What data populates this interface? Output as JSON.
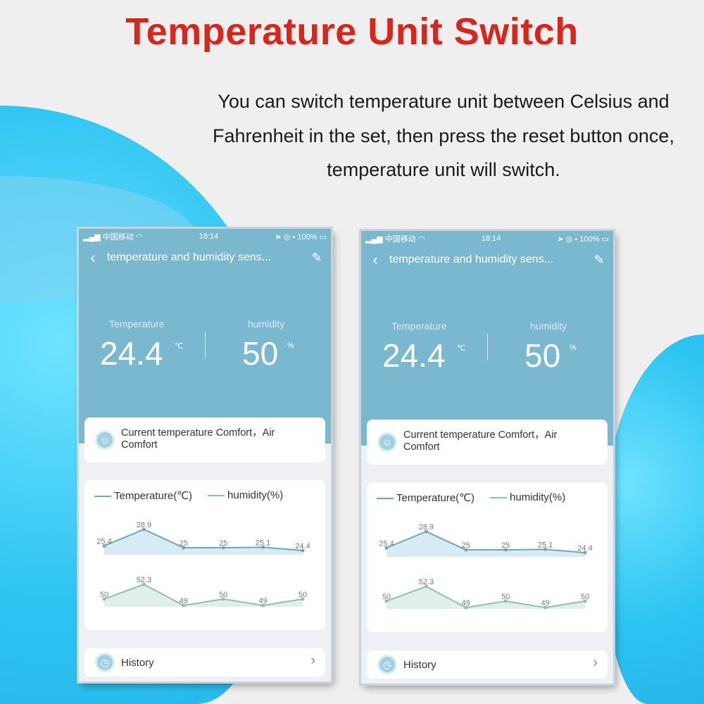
{
  "title": "Temperature Unit Switch",
  "subtitle": [
    "You can switch temperature unit between Celsius and",
    "Fahrenheit in the set, then press the reset button once,",
    "temperature unit will switch."
  ],
  "colors": {
    "title": "#d7261c",
    "header": "#7ab8d0",
    "accent_blob": "#2ec4f2"
  },
  "phone": {
    "status": {
      "carrier": "中国移动",
      "time": "18:14",
      "battery": "100%"
    },
    "nav": {
      "back_icon": "chevron-left-icon",
      "title": "temperature and humidity sens...",
      "edit_icon": "pencil-icon"
    },
    "temperature": {
      "label": "Temperature",
      "value": "24.4",
      "unit": "℃"
    },
    "humidity": {
      "label": "humidity",
      "value": "50",
      "unit": "%"
    },
    "comfort": "Current temperature Comfort，Air Comfort",
    "legend": {
      "temp": "Temperature(℃)",
      "hum": "humidity(%)"
    },
    "history": "History"
  },
  "chart_data": {
    "type": "line",
    "series": [
      {
        "name": "Temperature(℃)",
        "values": [
          25.4,
          28.9,
          25,
          25,
          25.1,
          24.4
        ],
        "labels": [
          "25.4",
          "28.9",
          "25",
          "25",
          "25.1",
          "24.4"
        ]
      },
      {
        "name": "humidity(%)",
        "values": [
          50,
          52.3,
          49,
          50,
          49,
          50
        ],
        "labels": [
          "50",
          "52.3",
          "49",
          "50",
          "49",
          "50"
        ]
      }
    ]
  }
}
